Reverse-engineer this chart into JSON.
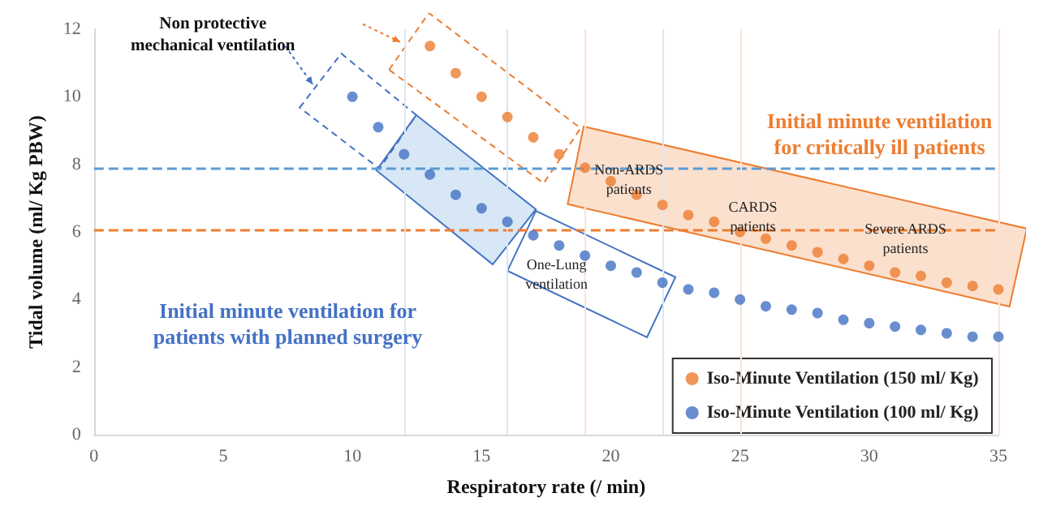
{
  "chart_data": {
    "type": "scatter",
    "xlabel": "Respiratory rate (/ min)",
    "ylabel": "Tidal volume (ml/ Kg PBW)",
    "xlim": [
      0,
      35
    ],
    "xticks": [
      0,
      5,
      10,
      15,
      20,
      25,
      30,
      35
    ],
    "ylim": [
      0,
      12
    ],
    "yticks": [
      0,
      2,
      4,
      6,
      8,
      10,
      12
    ],
    "grid": false,
    "legend": "bottom right",
    "marker": "circle",
    "series": [
      {
        "name": "Iso-Minute Ventilation (150 ml/ Kg)",
        "color": "#ed7d31",
        "x": [
          13,
          14,
          15,
          16,
          17,
          18,
          19,
          20,
          21,
          22,
          23,
          24,
          25,
          26,
          27,
          28,
          29,
          30,
          31,
          32,
          33,
          34,
          35
        ],
        "values": [
          11.5,
          10.7,
          10.0,
          9.4,
          8.8,
          8.3,
          7.9,
          7.5,
          7.1,
          6.8,
          6.5,
          6.3,
          6.0,
          5.8,
          5.6,
          5.4,
          5.2,
          5.0,
          4.8,
          4.7,
          4.5,
          4.4,
          4.3
        ]
      },
      {
        "name": "Iso-Minute Ventilation (100 ml/ Kg)",
        "color": "#4472c4",
        "x": [
          10,
          11,
          12,
          13,
          14,
          15,
          16,
          17,
          18,
          19,
          20,
          21,
          22,
          23,
          24,
          25,
          26,
          27,
          28,
          29,
          30,
          31,
          32,
          33,
          34,
          35
        ],
        "values": [
          10.0,
          9.1,
          8.3,
          7.7,
          7.1,
          6.7,
          6.3,
          5.9,
          5.6,
          5.3,
          5.0,
          4.8,
          4.5,
          4.3,
          4.2,
          4.0,
          3.8,
          3.7,
          3.6,
          3.4,
          3.3,
          3.2,
          3.1,
          3.0,
          2.9,
          2.9
        ]
      }
    ],
    "ref_lines": [
      {
        "axis": "y",
        "value": 7.9,
        "color": "#5b9bd5",
        "line_style": "dashed"
      },
      {
        "axis": "y",
        "value": 6.05,
        "color": "#ed7d31",
        "line_style": "dashed"
      },
      {
        "axis": "x",
        "value": 12,
        "color": "#dce6f4",
        "line_style": "solid"
      },
      {
        "axis": "x",
        "value": 16,
        "color": "#dce6f4",
        "line_style": "solid"
      },
      {
        "axis": "x",
        "value": 19,
        "color": "#fbe3d4",
        "line_style": "solid"
      },
      {
        "axis": "x",
        "value": 22,
        "color": "#dce6f4",
        "line_style": "solid"
      },
      {
        "axis": "x",
        "value": 25,
        "color": "#fbe3d4",
        "line_style": "solid"
      },
      {
        "axis": "x",
        "value": 35,
        "color": "#fbe3d4",
        "line_style": "solid"
      }
    ],
    "annotations": [
      "Non protective\nmechanical ventilation",
      "Initial minute ventilation\nfor critically ill patients",
      "Initial minute ventilation for\npatients with planned surgery",
      "Non-ARDS\npatients",
      "CARDS\npatients",
      "Severe ARDS\npatients",
      "One-Lung\nventilation"
    ]
  }
}
